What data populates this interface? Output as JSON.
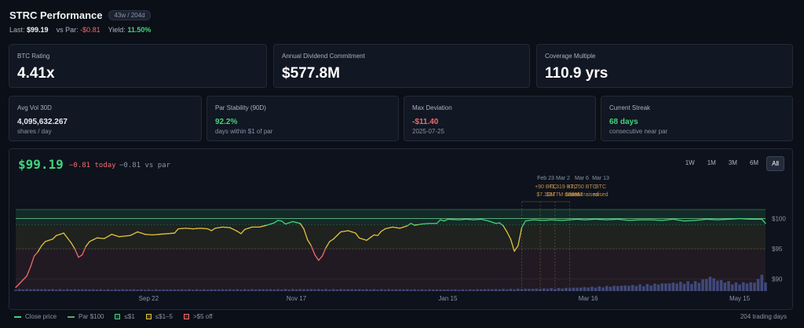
{
  "header": {
    "title": "STRC Performance",
    "badge": "43w / 204d",
    "last_label": "Last:",
    "last_value": "$99.19",
    "vs_par_label": "vs Par:",
    "vs_par_value": "-$0.81",
    "yield_label": "Yield:",
    "yield_value": "11.50%"
  },
  "cards_top": [
    {
      "label": "BTC Rating",
      "value": "4.41x"
    },
    {
      "label": "Annual Dividend Commitment",
      "value": "$577.8M"
    },
    {
      "label": "Coverage Multiple",
      "value": "110.9 yrs"
    }
  ],
  "cards_stats": [
    {
      "label": "Avg Vol 30D",
      "value": "4,095,632.267",
      "note": "shares / day",
      "value_color": "#e6e9ef"
    },
    {
      "label": "Par Stability (90D)",
      "value": "92.2%",
      "note": "days within $1 of par",
      "value_color": "#42d37b"
    },
    {
      "label": "Max Deviation",
      "value": "-$11.40",
      "note": "2025-07-25",
      "value_color": "#f06b6b"
    },
    {
      "label": "Current Streak",
      "value": "68 days",
      "note": "consecutive near par",
      "value_color": "#42d37b"
    }
  ],
  "chart_header": {
    "price": "$99.19",
    "change": "−0.81 today",
    "vs_par": "−0.81 vs par"
  },
  "ranges": [
    "1W",
    "1M",
    "3M",
    "6M",
    "All"
  ],
  "active_range": "All",
  "colors": {
    "green": "#42d37b",
    "yellow": "#e0c341",
    "red": "#f06b6b",
    "par": "#5aa879",
    "volume": "#4a5a9a"
  },
  "chart_data": {
    "type": "line",
    "ylim": [
      88,
      101.5
    ],
    "y_ticks": [
      "$100",
      "$95",
      "$90"
    ],
    "y_tick_values": [
      100,
      95,
      90
    ],
    "x_tick_labels": [
      "Sep 22",
      "Nov 17",
      "Jan 15",
      "Mar 16",
      "May 15"
    ],
    "x_tick_index": [
      36,
      76,
      117,
      155,
      196
    ],
    "n_points": 204,
    "par": 100,
    "bands": [
      {
        "name": "≤$1",
        "from": 99,
        "to": 101.5
      },
      {
        "name": "≤$1–5",
        "from": 95,
        "to": 99
      },
      {
        "name": ">$5 off",
        "from": 88,
        "to": 95
      }
    ],
    "series_anchors": [
      [
        0,
        88.6
      ],
      [
        3,
        90.5
      ],
      [
        4,
        92
      ],
      [
        5,
        93.8
      ],
      [
        6,
        94.5
      ],
      [
        7,
        95.5
      ],
      [
        8,
        96.2
      ],
      [
        10,
        96.6
      ],
      [
        11,
        97.2
      ],
      [
        12,
        97.4
      ],
      [
        13,
        97.6
      ],
      [
        15,
        96
      ],
      [
        16,
        95
      ],
      [
        17,
        93.6
      ],
      [
        18,
        94
      ],
      [
        19,
        95.4
      ],
      [
        20,
        96.2
      ],
      [
        22,
        96.8
      ],
      [
        24,
        96.7
      ],
      [
        26,
        97.4
      ],
      [
        28,
        97
      ],
      [
        31,
        97.2
      ],
      [
        33,
        97.8
      ],
      [
        35,
        97.4
      ],
      [
        37,
        97.3
      ],
      [
        39,
        97.4
      ],
      [
        41,
        97.5
      ],
      [
        43,
        97.6
      ],
      [
        44,
        98.3
      ],
      [
        46,
        98.4
      ],
      [
        48,
        98.3
      ],
      [
        50,
        98.4
      ],
      [
        52,
        98.3
      ],
      [
        53,
        98
      ],
      [
        54,
        98.4
      ],
      [
        56,
        98.6
      ],
      [
        58,
        98.5
      ],
      [
        60,
        97.9
      ],
      [
        61,
        97.5
      ],
      [
        62,
        98.2
      ],
      [
        64,
        98.6
      ],
      [
        66,
        98.6
      ],
      [
        68,
        98.9
      ],
      [
        70,
        99.3
      ],
      [
        71,
        99.7
      ],
      [
        72,
        99.6
      ],
      [
        73,
        99.1
      ],
      [
        75,
        99.5
      ],
      [
        77,
        99.2
      ],
      [
        78,
        98.3
      ],
      [
        79,
        96.5
      ],
      [
        80,
        95.5
      ],
      [
        81,
        94
      ],
      [
        82,
        93.1
      ],
      [
        83,
        93.8
      ],
      [
        84,
        95.2
      ],
      [
        85,
        96.2
      ],
      [
        86,
        96.6
      ],
      [
        88,
        97.8
      ],
      [
        90,
        98
      ],
      [
        92,
        97.6
      ],
      [
        93,
        96.8
      ],
      [
        95,
        96.4
      ],
      [
        97,
        97.3
      ],
      [
        98,
        97.2
      ],
      [
        99,
        97.9
      ],
      [
        100,
        98.3
      ],
      [
        102,
        98.6
      ],
      [
        104,
        98.4
      ],
      [
        106,
        98.8
      ],
      [
        107,
        99.2
      ],
      [
        108,
        98.9
      ],
      [
        110,
        99.1
      ],
      [
        112,
        99.2
      ],
      [
        114,
        99.2
      ],
      [
        115,
        99.8
      ],
      [
        116,
        99.6
      ],
      [
        117,
        99.9
      ],
      [
        120,
        99.8
      ],
      [
        122,
        99.9
      ],
      [
        124,
        99.8
      ],
      [
        126,
        99.9
      ],
      [
        128,
        99.6
      ],
      [
        130,
        99.2
      ],
      [
        131,
        99.3
      ],
      [
        132,
        98.8
      ],
      [
        133,
        97.8
      ],
      [
        134,
        96.6
      ],
      [
        135,
        94.6
      ],
      [
        136,
        95.5
      ],
      [
        137,
        98.5
      ],
      [
        138,
        99.6
      ],
      [
        140,
        99.8
      ],
      [
        143,
        99.7
      ],
      [
        145,
        99.8
      ],
      [
        148,
        99.7
      ],
      [
        150,
        99.8
      ],
      [
        152,
        99.9
      ],
      [
        154,
        99.8
      ],
      [
        157,
        99.9
      ],
      [
        160,
        99.8
      ],
      [
        163,
        99.9
      ],
      [
        166,
        99.7
      ],
      [
        169,
        99.8
      ],
      [
        172,
        99.8
      ],
      [
        175,
        99.7
      ],
      [
        178,
        99.9
      ],
      [
        181,
        99.6
      ],
      [
        184,
        99.7
      ],
      [
        187,
        99.9
      ],
      [
        190,
        99.8
      ],
      [
        193,
        99.9
      ],
      [
        196,
        100
      ],
      [
        199,
        99.9
      ],
      [
        202,
        99.9
      ],
      [
        203,
        99.2
      ]
    ],
    "volume_note": "volume bars shown at bottom, relative heights",
    "volume_anchors": [
      [
        0,
        0.12
      ],
      [
        40,
        0.1
      ],
      [
        80,
        0.12
      ],
      [
        120,
        0.1
      ],
      [
        140,
        0.15
      ],
      [
        150,
        0.2
      ],
      [
        160,
        0.3
      ],
      [
        170,
        0.4
      ],
      [
        180,
        0.55
      ],
      [
        185,
        0.6
      ],
      [
        188,
        0.9
      ],
      [
        190,
        0.7
      ],
      [
        195,
        0.5
      ],
      [
        200,
        0.55
      ],
      [
        202,
        1.0
      ],
      [
        203,
        0.6
      ]
    ],
    "annotations": [
      {
        "date": "Feb 23",
        "line1": "+90 BTC",
        "line2": "$7.10M",
        "line3": "raised"
      },
      {
        "date": "Mar 2",
        "line1": "+3,319 BTC",
        "line2": "$377M raised",
        "line3": ""
      },
      {
        "date": "Mar 6",
        "line1": "+3,750 BTC",
        "line2": "$388M raised",
        "line3": ""
      },
      {
        "date": "Mar 13",
        "line1": "BTC",
        "line2": "raised",
        "line3": ""
      }
    ]
  },
  "legend": [
    {
      "label": "Close price",
      "kind": "line",
      "color": "#42d37b"
    },
    {
      "label": "Par $100",
      "kind": "line",
      "color": "#5aa879"
    },
    {
      "label": "≤$1",
      "kind": "box",
      "color": "#42d37b"
    },
    {
      "label": "≤$1–5",
      "kind": "box",
      "color": "#e0c341"
    },
    {
      "label": ">$5 off",
      "kind": "box",
      "color": "#f06b6b"
    }
  ],
  "footer_note": "204 trading days"
}
